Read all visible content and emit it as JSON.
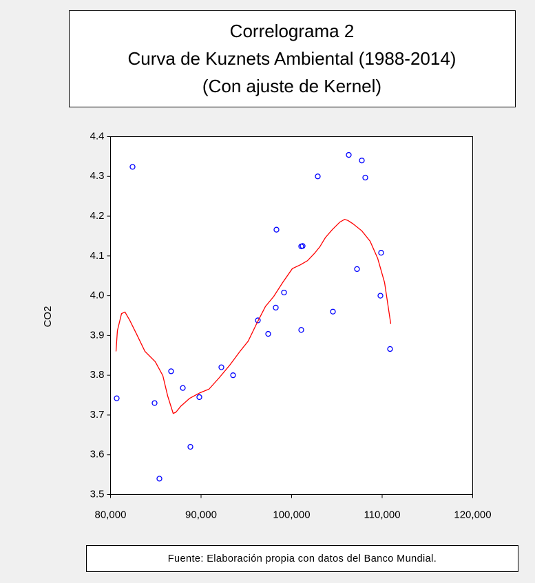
{
  "chart_data": {
    "type": "scatter",
    "title": [
      "Correlograma 2",
      "Curva de Kuznets Ambiental (1988-2014)",
      "(Con ajuste de Kernel)"
    ],
    "ylabel": "CO2",
    "source": "Fuente: Elaboración propia con datos del Banco Mundial.",
    "xlim": [
      80000,
      120000
    ],
    "xticks": [
      {
        "value": 80000,
        "label": "80,000"
      },
      {
        "value": 90000,
        "label": "90,000"
      },
      {
        "value": 100000,
        "label": "100,000"
      },
      {
        "value": 110000,
        "label": "110,000"
      },
      {
        "value": 120000,
        "label": "120,000"
      }
    ],
    "ylim": [
      3.5,
      4.4
    ],
    "yticks": [
      3.5,
      3.6,
      3.7,
      3.8,
      3.9,
      {
        "value": 4,
        "label": "4.0"
      },
      4.1,
      4.2,
      4.3,
      4.4
    ],
    "grid": false,
    "series": [
      {
        "type": "scatter",
        "color": "#0000ff",
        "x": [
          80684,
          82433,
          84867,
          85399,
          86692,
          87985,
          88821,
          89810,
          92243,
          93536,
          96274,
          97414,
          98251,
          98327,
          99163,
          101065,
          101217,
          101065,
          102890,
          104563,
          106312,
          107224,
          107757,
          108137,
          109886,
          109810,
          110875
        ],
        "values": [
          3.742,
          4.324,
          3.73,
          3.54,
          3.81,
          3.768,
          3.62,
          3.745,
          3.82,
          3.8,
          3.938,
          3.904,
          3.97,
          4.166,
          4.008,
          4.124,
          4.125,
          3.914,
          4.3,
          3.96,
          4.354,
          4.067,
          4.34,
          4.297,
          4.108,
          4.0,
          3.866
        ]
      },
      {
        "type": "line",
        "color": "#ff0000",
        "x": [
          80608,
          80760,
          81217,
          81597,
          82129,
          82890,
          83802,
          84943,
          85779,
          86312,
          86920,
          87224,
          87757,
          88745,
          89886,
          90875,
          92016,
          93156,
          94297,
          95210,
          96123,
          97111,
          98024,
          99012,
          100077,
          100990,
          101750,
          102511,
          103119,
          103728,
          104488,
          105325,
          105857,
          106237,
          106770,
          107758,
          108671,
          109507,
          110268,
          110952
        ],
        "values": [
          3.86,
          3.912,
          3.955,
          3.959,
          3.938,
          3.903,
          3.86,
          3.834,
          3.799,
          3.748,
          3.704,
          3.707,
          3.722,
          3.742,
          3.756,
          3.765,
          3.794,
          3.825,
          3.86,
          3.886,
          3.929,
          3.973,
          3.998,
          4.033,
          4.068,
          4.078,
          4.088,
          4.106,
          4.123,
          4.146,
          4.166,
          4.185,
          4.192,
          4.189,
          4.181,
          4.163,
          4.137,
          4.094,
          4.033,
          3.929
        ]
      }
    ]
  }
}
